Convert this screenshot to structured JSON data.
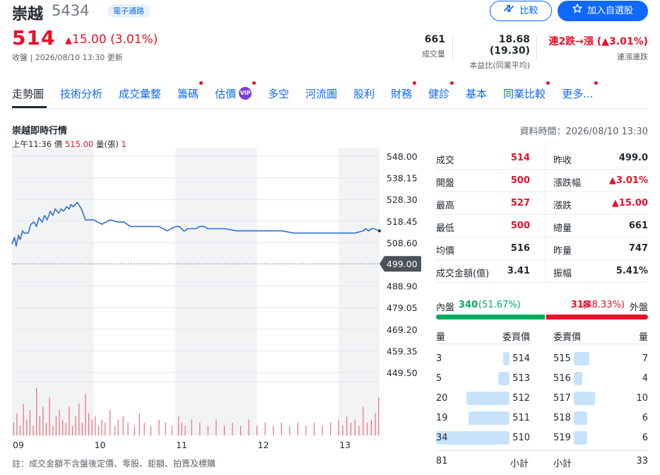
{
  "stock": {
    "name": "崇越",
    "code": "5434",
    "category": "電子通路",
    "price": "514",
    "change": "15.00 (3.01%)",
    "status": "收盤 | 2026/08/10 13:30 更新"
  },
  "buttons": {
    "compare": "比較",
    "watchlist": "加入自選股"
  },
  "key_stats": [
    {
      "value": "661",
      "label": "成交量"
    },
    {
      "value": "18.68 (19.30)",
      "label": "本益比(同業平均)"
    },
    {
      "value": "連2跌→漲 (▲3.01%)",
      "label": "連漲連跌"
    }
  ],
  "tabs": [
    {
      "label": "走勢圖",
      "active": true,
      "dot": false
    },
    {
      "label": "技術分析",
      "dot": false
    },
    {
      "label": "成交彙整",
      "dot": false
    },
    {
      "label": "籌碼",
      "dot": true
    },
    {
      "label": "估價",
      "dot": true,
      "vip": "VIP"
    },
    {
      "label": "多空",
      "dot": false
    },
    {
      "label": "河流圖",
      "dot": false
    },
    {
      "label": "股利",
      "dot": false
    },
    {
      "label": "財務",
      "dot": true
    },
    {
      "label": "健診",
      "dot": true
    },
    {
      "label": "基本",
      "dot": false
    },
    {
      "label": "同業比較",
      "dot": true
    },
    {
      "label": "更多...",
      "dot": true
    }
  ],
  "chart_header": {
    "title": "崇越即時行情",
    "data_time": "資料時間：2026/08/10 13:30",
    "tooltip_time": "上午11:36",
    "tooltip_price_label": "價",
    "tooltip_price": "515.00",
    "tooltip_vol_label": "量(張)",
    "tooltip_vol": "1"
  },
  "chart_data": {
    "type": "line",
    "y_ticks": [
      "548.00",
      "538.15",
      "528.30",
      "518.45",
      "508.60",
      "499.00",
      "488.90",
      "479.05",
      "469.20",
      "459.35",
      "449.50"
    ],
    "ylim": [
      449.5,
      548.0
    ],
    "reference_price": 499.0,
    "reference_label": "499.00",
    "x_ticks": [
      "09",
      "10",
      "11",
      "12",
      "13"
    ],
    "session": [
      9.0,
      13.5
    ],
    "series": [
      {
        "x": [
          9.0,
          9.03,
          9.05,
          9.08,
          9.1,
          9.13,
          9.15,
          9.2,
          9.23,
          9.27,
          9.3,
          9.33,
          9.37,
          9.4,
          9.43,
          9.47,
          9.5,
          9.53,
          9.57,
          9.6,
          9.63,
          9.67,
          9.7,
          9.72,
          9.75,
          9.8,
          9.85,
          9.87,
          9.9,
          9.93,
          9.97,
          10.0,
          10.05,
          10.1,
          10.2,
          10.3,
          10.3,
          10.37,
          10.45,
          10.5,
          10.55,
          10.6,
          10.63,
          10.7,
          10.8,
          10.9,
          11.0,
          11.05,
          11.1,
          11.12,
          11.15,
          11.2,
          11.25,
          11.3,
          11.35,
          11.4,
          11.5,
          11.6,
          11.75,
          11.9,
          12.0,
          12.1,
          12.2,
          12.3,
          12.45,
          12.5,
          12.6,
          12.7,
          12.8,
          12.9,
          13.0,
          13.1,
          13.2,
          13.3,
          13.33,
          13.37,
          13.4,
          13.43,
          13.5
        ],
        "y": [
          508,
          511,
          507,
          512,
          510,
          514,
          513,
          513,
          517,
          518,
          516,
          520,
          518,
          521,
          519,
          523,
          521,
          524,
          522,
          524,
          523,
          525,
          524,
          526,
          525,
          527,
          524,
          522,
          519,
          519,
          519,
          519,
          518,
          517,
          519,
          518,
          518,
          518,
          516,
          516,
          516,
          516,
          516,
          516,
          516,
          514,
          516,
          516,
          514,
          514,
          515,
          515,
          515,
          516,
          516,
          515,
          515,
          515,
          514,
          514,
          514,
          514,
          514,
          514,
          513,
          513,
          513,
          513,
          513,
          513,
          513,
          513,
          513,
          514,
          515,
          514,
          515,
          515,
          514
        ]
      }
    ],
    "volume": {
      "x": [
        9.02,
        9.06,
        9.1,
        9.14,
        9.18,
        9.22,
        9.26,
        9.3,
        9.34,
        9.38,
        9.42,
        9.46,
        9.5,
        9.54,
        9.58,
        9.62,
        9.66,
        9.7,
        9.74,
        9.78,
        9.82,
        9.86,
        9.9,
        9.94,
        9.98,
        10.02,
        10.06,
        10.1,
        10.14,
        10.2,
        10.26,
        10.3,
        10.36,
        10.42,
        10.5,
        10.56,
        10.62,
        10.7,
        10.8,
        10.88,
        10.96,
        11.04,
        11.08,
        11.12,
        11.2,
        11.3,
        11.4,
        11.5,
        11.6,
        11.7,
        11.8,
        11.9,
        12.0,
        12.1,
        12.2,
        12.3,
        12.4,
        12.5,
        12.6,
        12.7,
        12.8,
        12.9,
        13.0,
        13.05,
        13.1,
        13.15,
        13.2,
        13.25,
        13.3,
        13.35,
        13.4,
        13.45,
        13.49
      ],
      "values": [
        4,
        7,
        3,
        10,
        5,
        8,
        3,
        15,
        6,
        9,
        4,
        12,
        3,
        6,
        8,
        5,
        4,
        9,
        3,
        6,
        10,
        4,
        13,
        7,
        5,
        6,
        3,
        5,
        4,
        8,
        3,
        5,
        6,
        4,
        3,
        7,
        4,
        3,
        5,
        4,
        3,
        6,
        4,
        3,
        5,
        4,
        3,
        5,
        3,
        4,
        3,
        5,
        3,
        4,
        3,
        4,
        3,
        4,
        3,
        4,
        3,
        4,
        5,
        3,
        6,
        4,
        5,
        3,
        9,
        4,
        5,
        7,
        12
      ],
      "max": 16
    }
  },
  "stats": [
    {
      "label": "成交",
      "value": "514",
      "color": "#eb0f29",
      "label2": "昨收",
      "value2": "499.0",
      "color2": "#232a31"
    },
    {
      "label": "開盤",
      "value": "500",
      "color": "#eb0f29",
      "label2": "漲跌幅",
      "value2": "▲3.01%",
      "color2": "#eb0f29"
    },
    {
      "label": "最高",
      "value": "527",
      "color": "#eb0f29",
      "label2": "漲跌",
      "value2": "▲15.00",
      "color2": "#eb0f29"
    },
    {
      "label": "最低",
      "value": "500",
      "color": "#eb0f29",
      "label2": "總量",
      "value2": "661",
      "color2": "#232a31"
    },
    {
      "label": "均價",
      "value": "516",
      "color": "#232a31",
      "label2": "昨量",
      "value2": "747",
      "color2": "#232a31"
    },
    {
      "label": "成交金額(億)",
      "value": "3.41",
      "color": "#232a31",
      "label2": "振幅",
      "value2": "5.41%",
      "color2": "#232a31"
    }
  ],
  "inout": {
    "in_label": "內盤",
    "in_value": "340",
    "in_pct": "(51.67%)",
    "in_fraction": 0.5167,
    "out_value": "318",
    "out_pct": "(48.33%)",
    "out_label": "外盤"
  },
  "orderbook": {
    "headers": {
      "qty": "量",
      "bid": "委買價",
      "ask": "委賣價",
      "qty2": "量"
    },
    "rows": [
      {
        "bid_qty": "3",
        "bid": "514",
        "ask": "515",
        "ask_qty": "7",
        "bid_fraction": 0.09,
        "ask_fraction": 0.21
      },
      {
        "bid_qty": "5",
        "bid": "513",
        "ask": "516",
        "ask_qty": "4",
        "bid_fraction": 0.15,
        "ask_fraction": 0.12
      },
      {
        "bid_qty": "20",
        "bid": "512",
        "ask": "517",
        "ask_qty": "10",
        "bid_fraction": 0.59,
        "ask_fraction": 0.29
      },
      {
        "bid_qty": "19",
        "bid": "511",
        "ask": "518",
        "ask_qty": "6",
        "bid_fraction": 0.56,
        "ask_fraction": 0.18
      },
      {
        "bid_qty": "34",
        "bid": "510",
        "ask": "519",
        "ask_qty": "6",
        "bid_fraction": 1.0,
        "ask_fraction": 0.18
      }
    ],
    "footer": {
      "bid_total": "81",
      "bid_label": "小計",
      "ask_label": "小計",
      "ask_total": "33"
    }
  },
  "footnote": "註：成交金額不含盤後定價、零股、鉅額、拍賣及標購",
  "colors": {
    "up": "#eb0f29",
    "down": "#00ab5e",
    "accent": "#0f69ff",
    "line": "#2f6fd1"
  }
}
